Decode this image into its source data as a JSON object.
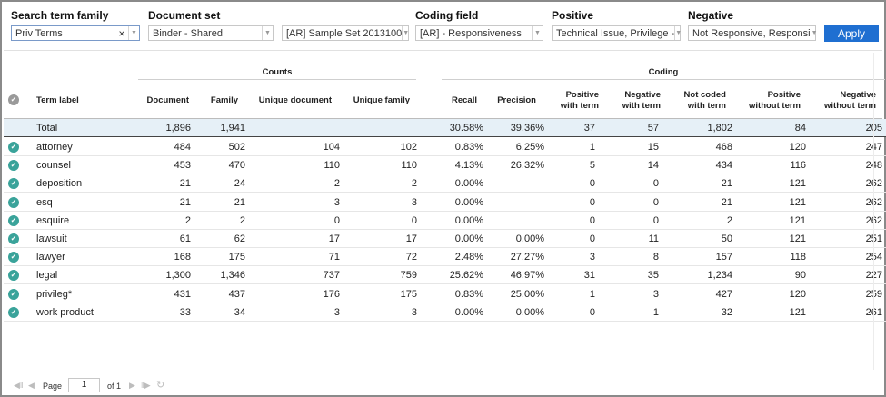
{
  "filters": {
    "search_term_family": {
      "label": "Search term family",
      "value": "Priv Terms",
      "clear": "×"
    },
    "document_set": {
      "label": "Document set",
      "value1": "Binder - Shared",
      "value2": "[AR] Sample Set 2013100"
    },
    "coding_field": {
      "label": "Coding field",
      "value": "[AR] - Responsiveness"
    },
    "positive": {
      "label": "Positive",
      "value": "Technical Issue, Privilege -"
    },
    "negative": {
      "label": "Negative",
      "value": "Not Responsive, Responsi"
    },
    "apply_label": "Apply"
  },
  "table": {
    "group_counts": "Counts",
    "group_coding": "Coding",
    "headers": {
      "term_label": "Term label",
      "document": "Document",
      "family": "Family",
      "unique_document": "Unique document",
      "unique_family": "Unique family",
      "recall": "Recall",
      "precision": "Precision",
      "positive_with_term_1": "Positive",
      "positive_with_term_2": "with term",
      "negative_with_term_1": "Negative",
      "negative_with_term_2": "with term",
      "not_coded_with_term_1": "Not coded",
      "not_coded_with_term_2": "with term",
      "positive_without_term_1": "Positive",
      "positive_without_term_2": "without term",
      "negative_without_term_1": "Negative",
      "negative_without_term_2": "without term"
    },
    "total": {
      "label": "Total",
      "document": "1,896",
      "family": "1,941",
      "unique_document": "",
      "unique_family": "",
      "recall": "30.58%",
      "precision": "39.36%",
      "pos_with": "37",
      "neg_with": "57",
      "not_coded": "1,802",
      "pos_without": "84",
      "neg_without": "205"
    },
    "rows": [
      {
        "label": "attorney",
        "document": "484",
        "family": "502",
        "unique_document": "104",
        "unique_family": "102",
        "recall": "0.83%",
        "precision": "6.25%",
        "pos_with": "1",
        "neg_with": "15",
        "not_coded": "468",
        "pos_without": "120",
        "neg_without": "247"
      },
      {
        "label": "counsel",
        "document": "453",
        "family": "470",
        "unique_document": "110",
        "unique_family": "110",
        "recall": "4.13%",
        "precision": "26.32%",
        "pos_with": "5",
        "neg_with": "14",
        "not_coded": "434",
        "pos_without": "116",
        "neg_without": "248"
      },
      {
        "label": "deposition",
        "document": "21",
        "family": "24",
        "unique_document": "2",
        "unique_family": "2",
        "recall": "0.00%",
        "precision": "",
        "pos_with": "0",
        "neg_with": "0",
        "not_coded": "21",
        "pos_without": "121",
        "neg_without": "262"
      },
      {
        "label": "esq",
        "document": "21",
        "family": "21",
        "unique_document": "3",
        "unique_family": "3",
        "recall": "0.00%",
        "precision": "",
        "pos_with": "0",
        "neg_with": "0",
        "not_coded": "21",
        "pos_without": "121",
        "neg_without": "262"
      },
      {
        "label": "esquire",
        "document": "2",
        "family": "2",
        "unique_document": "0",
        "unique_family": "0",
        "recall": "0.00%",
        "precision": "",
        "pos_with": "0",
        "neg_with": "0",
        "not_coded": "2",
        "pos_without": "121",
        "neg_without": "262"
      },
      {
        "label": "lawsuit",
        "document": "61",
        "family": "62",
        "unique_document": "17",
        "unique_family": "17",
        "recall": "0.00%",
        "precision": "0.00%",
        "pos_with": "0",
        "neg_with": "11",
        "not_coded": "50",
        "pos_without": "121",
        "neg_without": "251"
      },
      {
        "label": "lawyer",
        "document": "168",
        "family": "175",
        "unique_document": "71",
        "unique_family": "72",
        "recall": "2.48%",
        "precision": "27.27%",
        "pos_with": "3",
        "neg_with": "8",
        "not_coded": "157",
        "pos_without": "118",
        "neg_without": "254"
      },
      {
        "label": "legal",
        "document": "1,300",
        "family": "1,346",
        "unique_document": "737",
        "unique_family": "759",
        "recall": "25.62%",
        "precision": "46.97%",
        "pos_with": "31",
        "neg_with": "35",
        "not_coded": "1,234",
        "pos_without": "90",
        "neg_without": "227"
      },
      {
        "label": "privileg*",
        "document": "431",
        "family": "437",
        "unique_document": "176",
        "unique_family": "175",
        "recall": "0.83%",
        "precision": "25.00%",
        "pos_with": "1",
        "neg_with": "3",
        "not_coded": "427",
        "pos_without": "120",
        "neg_without": "259"
      },
      {
        "label": "work product",
        "document": "33",
        "family": "34",
        "unique_document": "3",
        "unique_family": "3",
        "recall": "0.00%",
        "precision": "0.00%",
        "pos_with": "0",
        "neg_with": "1",
        "not_coded": "32",
        "pos_without": "121",
        "neg_without": "261"
      }
    ]
  },
  "pager": {
    "page_label": "Page",
    "page_value": "1",
    "of_label": "of 1"
  },
  "colors": {
    "accent": "#1f6fd1",
    "check": "#3aa39a",
    "total_row": "#e6f0f7"
  }
}
